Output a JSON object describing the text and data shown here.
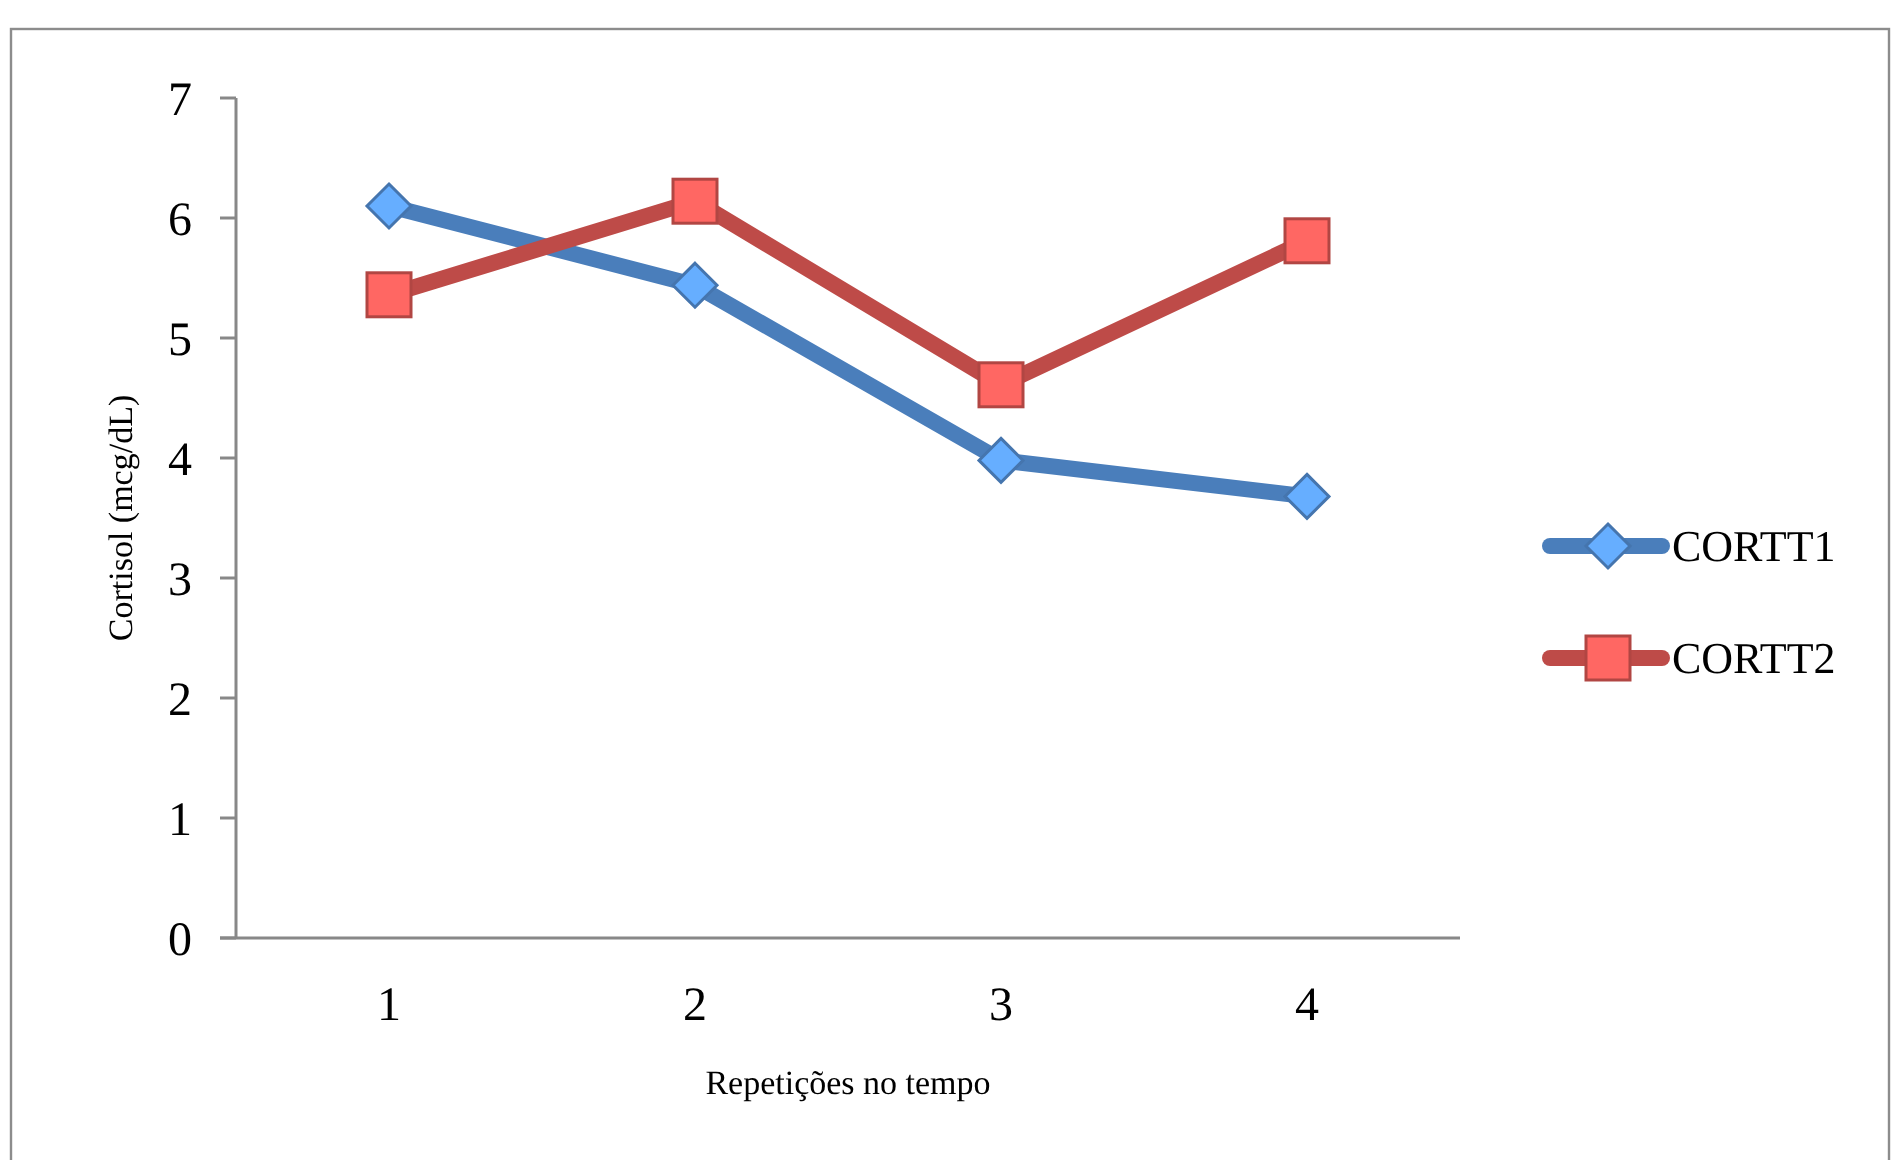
{
  "chart_data": {
    "type": "line",
    "xlabel": "Repetições no tempo",
    "ylabel": "Cortisol (mcg/dL)",
    "categories": [
      "1",
      "2",
      "3",
      "4"
    ],
    "series": [
      {
        "name": "CORTT1",
        "color": "#4a7ebb",
        "marker": "diamond",
        "values": [
          6.1,
          5.44,
          3.98,
          3.68
        ]
      },
      {
        "name": "CORTT2",
        "color": "#be4b48",
        "marker": "square",
        "values": [
          5.36,
          6.14,
          4.61,
          5.81
        ]
      }
    ],
    "ylim": [
      0,
      7
    ],
    "yticks": [
      0,
      1,
      2,
      3,
      4,
      5,
      6,
      7
    ],
    "legend": "right"
  }
}
